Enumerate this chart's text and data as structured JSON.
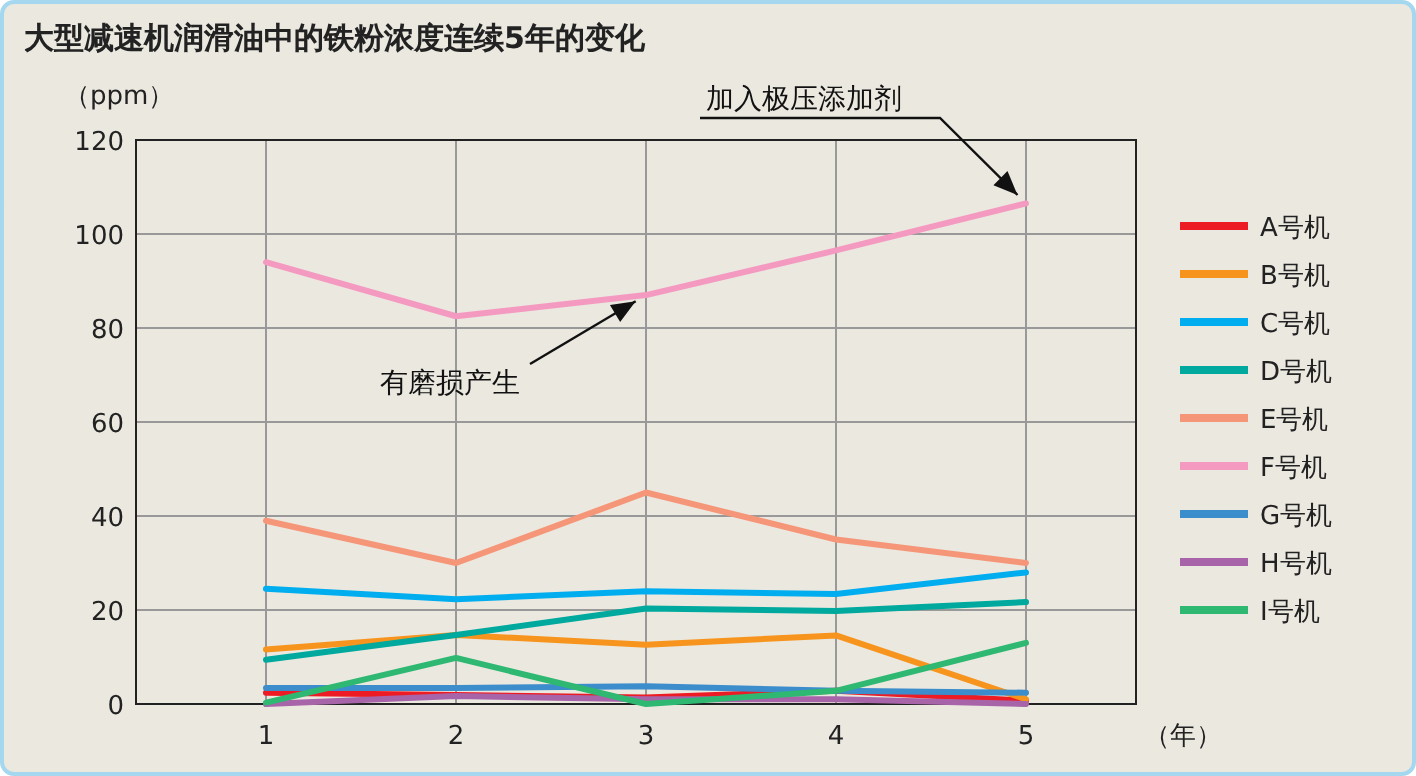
{
  "chart_data": {
    "type": "line",
    "title": "大型减速机润滑油中的铁粉浓度连续5年的变化",
    "ylabel": "（ppm）",
    "xlabel": "（年）",
    "categories": [
      "1",
      "2",
      "3",
      "4",
      "5"
    ],
    "series": [
      {
        "name": "A号机",
        "color": "#ed1c24",
        "values": [
          2.4,
          1.9,
          1.4,
          2.8,
          0.7
        ]
      },
      {
        "name": "B号机",
        "color": "#f7941d",
        "values": [
          11.6,
          14.7,
          12.6,
          14.6,
          1
        ]
      },
      {
        "name": "C号机",
        "color": "#00aeef",
        "values": [
          24.5,
          22.3,
          24,
          23.4,
          28
        ]
      },
      {
        "name": "D号机",
        "color": "#00a99d",
        "values": [
          9.4,
          14.7,
          20.3,
          19.8,
          21.7
        ]
      },
      {
        "name": "E号机",
        "color": "#f69679",
        "values": [
          39,
          30,
          45,
          35,
          30
        ]
      },
      {
        "name": "F号机",
        "color": "#f49ac1",
        "values": [
          94,
          82.5,
          87,
          96.5,
          106.5
        ]
      },
      {
        "name": "G号机",
        "color": "#3c8dcb",
        "values": [
          3.4,
          3.4,
          3.8,
          2.8,
          2.4
        ]
      },
      {
        "name": "H号机",
        "color": "#a864a8",
        "values": [
          0,
          1.7,
          1,
          1,
          0
        ]
      },
      {
        "name": "I号机",
        "color": "#2eb872",
        "values": [
          0.3,
          9.8,
          0,
          2.8,
          13
        ]
      }
    ],
    "ylim": [
      0,
      120
    ],
    "yticks": [
      0,
      20,
      40,
      60,
      80,
      100,
      120
    ],
    "grid": true,
    "legend": "right",
    "annotations": [
      {
        "text": "加入极压添加剂",
        "x": "5",
        "y": 106.5
      },
      {
        "text": "有磨损产生",
        "x": "3",
        "y": 87
      }
    ]
  }
}
